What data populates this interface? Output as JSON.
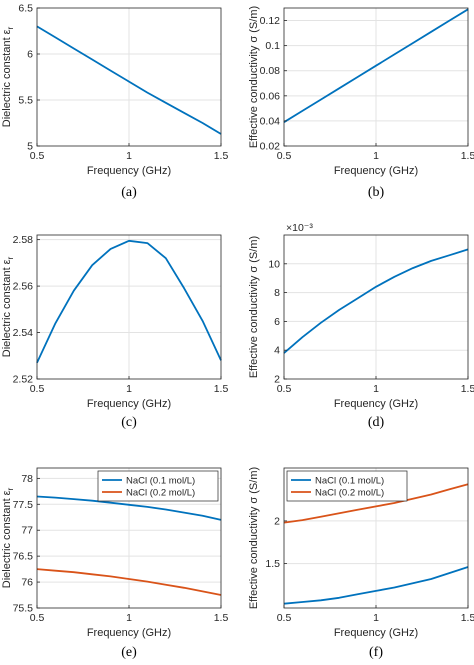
{
  "colors": {
    "blue": "#0072BD",
    "orange": "#D95319",
    "grid": "#e3e3e3",
    "axis": "#262626"
  },
  "chart_data": [
    {
      "id": "a",
      "type": "line",
      "caption": "(a)",
      "xlabel": "Frequency (GHz)",
      "ylabel": "Dielectric constant ε",
      "ylabel_sub": "r",
      "xlim": [
        0.5,
        1.5
      ],
      "ylim": [
        5,
        6.5
      ],
      "xticks": [
        0.5,
        1,
        1.5
      ],
      "xticklabels": [
        "0.5",
        "1",
        "1.5"
      ],
      "yticks": [
        5,
        5.5,
        6,
        6.5
      ],
      "yticklabels": [
        "5",
        "5.5",
        "6",
        "6.5"
      ],
      "grid": true,
      "legend": null,
      "series": [
        {
          "color": "blue",
          "x": [
            0.5,
            0.6,
            0.7,
            0.8,
            0.9,
            1.0,
            1.1,
            1.2,
            1.3,
            1.4,
            1.5
          ],
          "y": [
            6.3,
            6.18,
            6.06,
            5.94,
            5.82,
            5.7,
            5.58,
            5.47,
            5.36,
            5.25,
            5.13
          ]
        }
      ]
    },
    {
      "id": "b",
      "type": "line",
      "caption": "(b)",
      "xlabel": "Frequency (GHz)",
      "ylabel": "Effective conductivity σ (S/m)",
      "xlim": [
        0.5,
        1.5
      ],
      "ylim": [
        0.02,
        0.13
      ],
      "xticks": [
        0.5,
        1,
        1.5
      ],
      "xticklabels": [
        "0.5",
        "1",
        "1.5"
      ],
      "yticks": [
        0.02,
        0.04,
        0.06,
        0.08,
        0.1,
        0.12
      ],
      "yticklabels": [
        "0.02",
        "0.04",
        "0.06",
        "0.08",
        "0.1",
        "0.12"
      ],
      "grid": true,
      "legend": null,
      "series": [
        {
          "color": "blue",
          "x": [
            0.5,
            0.6,
            0.7,
            0.8,
            0.9,
            1.0,
            1.1,
            1.2,
            1.3,
            1.4,
            1.5
          ],
          "y": [
            0.039,
            0.048,
            0.057,
            0.066,
            0.075,
            0.084,
            0.093,
            0.102,
            0.111,
            0.12,
            0.129
          ]
        }
      ]
    },
    {
      "id": "c",
      "type": "line",
      "caption": "(c)",
      "xlabel": "Frequency (GHz)",
      "ylabel": "Dielectric constant ε",
      "ylabel_sub": "r",
      "xlim": [
        0.5,
        1.5
      ],
      "ylim": [
        2.52,
        2.582
      ],
      "xticks": [
        0.5,
        1,
        1.5
      ],
      "xticklabels": [
        "0.5",
        "1",
        "1.5"
      ],
      "yticks": [
        2.52,
        2.54,
        2.56,
        2.58
      ],
      "yticklabels": [
        "2.52",
        "2.54",
        "2.56",
        "2.58"
      ],
      "grid": true,
      "legend": null,
      "series": [
        {
          "color": "blue",
          "x": [
            0.5,
            0.6,
            0.7,
            0.8,
            0.9,
            1.0,
            1.1,
            1.2,
            1.3,
            1.4,
            1.5
          ],
          "y": [
            2.527,
            2.544,
            2.558,
            2.569,
            2.576,
            2.5795,
            2.5785,
            2.572,
            2.559,
            2.545,
            2.528
          ]
        }
      ]
    },
    {
      "id": "d",
      "type": "line",
      "caption": "(d)",
      "xlabel": "Frequency (GHz)",
      "ylabel": "Effective conductivity σ (S/m)",
      "exponent": "×10⁻³",
      "xlim": [
        0.5,
        1.5
      ],
      "ylim": [
        2,
        12
      ],
      "xticks": [
        0.5,
        1,
        1.5
      ],
      "xticklabels": [
        "0.5",
        "1",
        "1.5"
      ],
      "yticks": [
        2,
        4,
        6,
        8,
        10
      ],
      "yticklabels": [
        "2",
        "4",
        "6",
        "8",
        "10"
      ],
      "grid": true,
      "legend": null,
      "series": [
        {
          "color": "blue",
          "x": [
            0.5,
            0.6,
            0.7,
            0.8,
            0.9,
            1.0,
            1.1,
            1.2,
            1.3,
            1.4,
            1.5
          ],
          "y": [
            3.8,
            4.9,
            5.9,
            6.8,
            7.6,
            8.4,
            9.1,
            9.7,
            10.2,
            10.6,
            11.0
          ]
        }
      ]
    },
    {
      "id": "e",
      "type": "line",
      "caption": "(e)",
      "xlabel": "Frequency (GHz)",
      "ylabel": "Dielectric constant ε",
      "ylabel_sub": "r",
      "xlim": [
        0.5,
        1.5
      ],
      "ylim": [
        75.5,
        78.2
      ],
      "xticks": [
        0.5,
        1,
        1.5
      ],
      "xticklabels": [
        "0.5",
        "1",
        "1.5"
      ],
      "yticks": [
        75.5,
        76,
        76.5,
        77,
        77.5,
        78
      ],
      "yticklabels": [
        "75.5",
        "76",
        "76.5",
        "77",
        "77.5",
        "78"
      ],
      "grid": true,
      "legend": "top-right",
      "series": [
        {
          "name": "NaCl (0.1 mol/L)",
          "color": "blue",
          "x": [
            0.5,
            0.6,
            0.7,
            0.8,
            0.9,
            1.0,
            1.1,
            1.2,
            1.3,
            1.4,
            1.5
          ],
          "y": [
            77.65,
            77.63,
            77.6,
            77.57,
            77.53,
            77.49,
            77.45,
            77.4,
            77.34,
            77.28,
            77.2
          ]
        },
        {
          "name": "NaCl (0.2 mol/L)",
          "color": "orange",
          "x": [
            0.5,
            0.6,
            0.7,
            0.8,
            0.9,
            1.0,
            1.1,
            1.2,
            1.3,
            1.4,
            1.5
          ],
          "y": [
            76.25,
            76.22,
            76.19,
            76.15,
            76.11,
            76.06,
            76.01,
            75.95,
            75.89,
            75.82,
            75.75
          ]
        }
      ]
    },
    {
      "id": "f",
      "type": "line",
      "caption": "(f)",
      "xlabel": "Frequency (GHz)",
      "ylabel": "Effective conductivity σ (S/m)",
      "xlim": [
        0.5,
        1.5
      ],
      "ylim": [
        0.98,
        2.62
      ],
      "xticks": [
        0.5,
        1,
        1.5
      ],
      "xticklabels": [
        "0.5",
        "1",
        "1.5"
      ],
      "yticks": [
        1.5,
        2
      ],
      "yticklabels": [
        "1.5",
        "2"
      ],
      "grid": true,
      "legend": "top-left",
      "series": [
        {
          "name": "NaCl (0.1 mol/L)",
          "color": "blue",
          "x": [
            0.5,
            0.6,
            0.7,
            0.8,
            0.9,
            1.0,
            1.1,
            1.2,
            1.3,
            1.4,
            1.5
          ],
          "y": [
            1.03,
            1.05,
            1.07,
            1.1,
            1.14,
            1.18,
            1.22,
            1.27,
            1.32,
            1.39,
            1.46
          ]
        },
        {
          "name": "NaCl (0.2 mol/L)",
          "color": "orange",
          "x": [
            0.5,
            0.6,
            0.7,
            0.8,
            0.9,
            1.0,
            1.1,
            1.2,
            1.3,
            1.4,
            1.5
          ],
          "y": [
            1.98,
            2.01,
            2.05,
            2.09,
            2.13,
            2.17,
            2.21,
            2.26,
            2.31,
            2.37,
            2.43
          ]
        }
      ]
    }
  ]
}
